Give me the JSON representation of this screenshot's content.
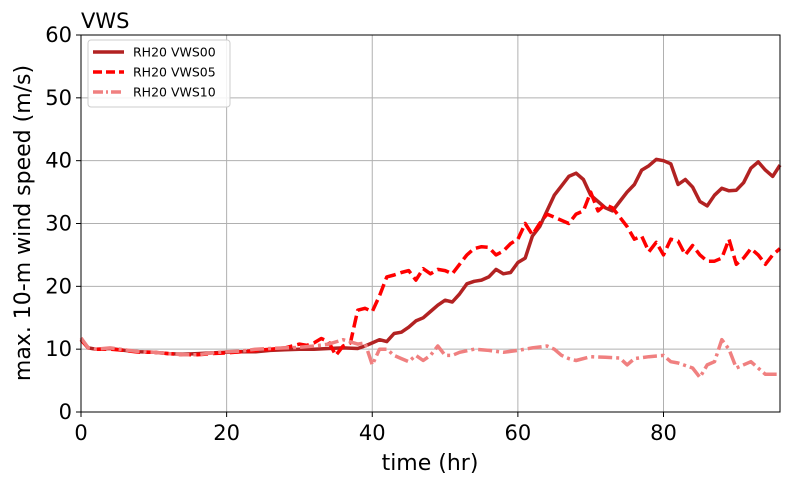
{
  "chart_data": {
    "type": "line",
    "title": "VWS",
    "xlabel": "time (hr)",
    "ylabel": "max. 10-m wind speed (m/s)",
    "xlim": [
      0,
      96
    ],
    "ylim": [
      0,
      60
    ],
    "xticks": [
      0,
      20,
      40,
      60,
      80
    ],
    "yticks": [
      0,
      10,
      20,
      30,
      40,
      50,
      60
    ],
    "grid": true,
    "legend_position": "top-left",
    "series": [
      {
        "name": "RH20 VWS00",
        "color": "#b22222",
        "style": "solid",
        "points": [
          [
            0,
            11.5
          ],
          [
            1,
            10.2
          ],
          [
            2,
            10
          ],
          [
            4,
            10.1
          ],
          [
            6,
            9.8
          ],
          [
            8,
            9.6
          ],
          [
            10,
            9.5
          ],
          [
            12,
            9.3
          ],
          [
            14,
            9.2
          ],
          [
            16,
            9.3
          ],
          [
            18,
            9.4
          ],
          [
            20,
            9.5
          ],
          [
            22,
            9.6
          ],
          [
            24,
            9.6
          ],
          [
            26,
            9.8
          ],
          [
            28,
            9.9
          ],
          [
            30,
            10
          ],
          [
            32,
            10
          ],
          [
            34,
            10.1
          ],
          [
            36,
            10.2
          ],
          [
            38,
            10.1
          ],
          [
            39,
            10.5
          ],
          [
            40,
            11
          ],
          [
            41,
            11.5
          ],
          [
            42,
            11.2
          ],
          [
            43,
            12.5
          ],
          [
            44,
            12.7
          ],
          [
            45,
            13.5
          ],
          [
            46,
            14.5
          ],
          [
            47,
            15
          ],
          [
            48,
            16
          ],
          [
            49,
            17
          ],
          [
            50,
            17.8
          ],
          [
            51,
            17.5
          ],
          [
            52,
            18.8
          ],
          [
            53,
            20.4
          ],
          [
            54,
            20.8
          ],
          [
            55,
            21
          ],
          [
            56,
            21.5
          ],
          [
            57,
            22.7
          ],
          [
            58,
            22
          ],
          [
            59,
            22.2
          ],
          [
            60,
            23.8
          ],
          [
            61,
            24.5
          ],
          [
            62,
            28
          ],
          [
            63,
            29.5
          ],
          [
            64,
            32
          ],
          [
            65,
            34.5
          ],
          [
            66,
            36
          ],
          [
            67,
            37.5
          ],
          [
            68,
            38
          ],
          [
            69,
            37
          ],
          [
            70,
            34.5
          ],
          [
            71,
            33.5
          ],
          [
            72,
            32.5
          ],
          [
            73,
            32
          ],
          [
            74,
            33.5
          ],
          [
            75,
            35
          ],
          [
            76,
            36.2
          ],
          [
            77,
            38.5
          ],
          [
            78,
            39.2
          ],
          [
            79,
            40.2
          ],
          [
            80,
            40
          ],
          [
            81,
            39.5
          ],
          [
            82,
            36.2
          ],
          [
            83,
            37
          ],
          [
            84,
            35.8
          ],
          [
            85,
            33.5
          ],
          [
            86,
            32.8
          ],
          [
            87,
            34.5
          ],
          [
            88,
            35.6
          ],
          [
            89,
            35.2
          ],
          [
            90,
            35.3
          ],
          [
            91,
            36.5
          ],
          [
            92,
            38.8
          ],
          [
            93,
            39.8
          ],
          [
            94,
            38.5
          ],
          [
            95,
            37.5
          ],
          [
            96,
            39.3
          ]
        ]
      },
      {
        "name": "RH20 VWS05",
        "color": "#ff0000",
        "style": "dashed",
        "points": [
          [
            0,
            11.5
          ],
          [
            1,
            10.2
          ],
          [
            2,
            10
          ],
          [
            4,
            10
          ],
          [
            6,
            9.8
          ],
          [
            8,
            9.5
          ],
          [
            10,
            9.5
          ],
          [
            12,
            9.3
          ],
          [
            14,
            9.1
          ],
          [
            16,
            9.1
          ],
          [
            18,
            9.3
          ],
          [
            20,
            9.4
          ],
          [
            22,
            9.6
          ],
          [
            24,
            9.8
          ],
          [
            26,
            10
          ],
          [
            28,
            10.2
          ],
          [
            30,
            10.8
          ],
          [
            31,
            10.6
          ],
          [
            32,
            11
          ],
          [
            33,
            11.7
          ],
          [
            34,
            11.2
          ],
          [
            35,
            9
          ],
          [
            36,
            10.5
          ],
          [
            37,
            11
          ],
          [
            38,
            16.2
          ],
          [
            39,
            16.5
          ],
          [
            40,
            16
          ],
          [
            41,
            18.5
          ],
          [
            42,
            21.5
          ],
          [
            43,
            21.8
          ],
          [
            44,
            22.2
          ],
          [
            45,
            22.5
          ],
          [
            46,
            21
          ],
          [
            47,
            22.8
          ],
          [
            48,
            22
          ],
          [
            49,
            22.7
          ],
          [
            50,
            22.5
          ],
          [
            51,
            22
          ],
          [
            52,
            23.5
          ],
          [
            53,
            25
          ],
          [
            54,
            26
          ],
          [
            55,
            26.3
          ],
          [
            56,
            26.2
          ],
          [
            57,
            25
          ],
          [
            58,
            25.6
          ],
          [
            59,
            26.8
          ],
          [
            60,
            27.5
          ],
          [
            61,
            30
          ],
          [
            62,
            28.2
          ],
          [
            63,
            30
          ],
          [
            64,
            31.5
          ],
          [
            65,
            31
          ],
          [
            66,
            30.5
          ],
          [
            67,
            30
          ],
          [
            68,
            31.5
          ],
          [
            69,
            32
          ],
          [
            70,
            35
          ],
          [
            71,
            32
          ],
          [
            72,
            33
          ],
          [
            73,
            32.5
          ],
          [
            74,
            31
          ],
          [
            75,
            29.5
          ],
          [
            76,
            27.5
          ],
          [
            77,
            28
          ],
          [
            78,
            25.5
          ],
          [
            79,
            27
          ],
          [
            80,
            25
          ],
          [
            81,
            27.5
          ],
          [
            82,
            27.2
          ],
          [
            83,
            25
          ],
          [
            84,
            26.5
          ],
          [
            85,
            25
          ],
          [
            86,
            24
          ],
          [
            87,
            24
          ],
          [
            88,
            24.5
          ],
          [
            89,
            27.5
          ],
          [
            90,
            23.5
          ],
          [
            91,
            24.5
          ],
          [
            92,
            26
          ],
          [
            93,
            25
          ],
          [
            94,
            23.5
          ],
          [
            95,
            25
          ],
          [
            96,
            26
          ]
        ]
      },
      {
        "name": "RH20 VWS10",
        "color": "#f08080",
        "style": "dashdot",
        "points": [
          [
            0,
            11.8
          ],
          [
            1,
            10.2
          ],
          [
            2,
            10
          ],
          [
            4,
            10.2
          ],
          [
            6,
            9.9
          ],
          [
            8,
            9.6
          ],
          [
            10,
            9.5
          ],
          [
            12,
            9.3
          ],
          [
            14,
            9.1
          ],
          [
            16,
            9.1
          ],
          [
            18,
            9.4
          ],
          [
            20,
            9.6
          ],
          [
            22,
            9.7
          ],
          [
            24,
            10
          ],
          [
            26,
            10.1
          ],
          [
            28,
            10.2
          ],
          [
            30,
            10.3
          ],
          [
            32,
            10.5
          ],
          [
            34,
            10.8
          ],
          [
            36,
            11.5
          ],
          [
            38,
            10.8
          ],
          [
            39,
            11
          ],
          [
            40,
            7.5
          ],
          [
            41,
            10
          ],
          [
            42,
            10
          ],
          [
            43,
            9
          ],
          [
            44,
            8.5
          ],
          [
            45,
            8
          ],
          [
            46,
            9
          ],
          [
            47,
            8.2
          ],
          [
            48,
            9
          ],
          [
            49,
            10.5
          ],
          [
            50,
            9
          ],
          [
            51,
            9
          ],
          [
            52,
            9.5
          ],
          [
            54,
            10
          ],
          [
            56,
            9.8
          ],
          [
            58,
            9.5
          ],
          [
            60,
            9.8
          ],
          [
            62,
            10.2
          ],
          [
            64,
            10.5
          ],
          [
            65,
            10
          ],
          [
            66,
            9
          ],
          [
            67,
            8.5
          ],
          [
            68,
            8.2
          ],
          [
            70,
            8.8
          ],
          [
            72,
            8.7
          ],
          [
            74,
            8.6
          ],
          [
            75,
            7.5
          ],
          [
            76,
            8.5
          ],
          [
            78,
            8.8
          ],
          [
            80,
            9
          ],
          [
            81,
            8
          ],
          [
            82,
            7.8
          ],
          [
            84,
            7
          ],
          [
            85,
            5.5
          ],
          [
            86,
            7.5
          ],
          [
            87,
            8
          ],
          [
            88,
            11.5
          ],
          [
            89,
            10
          ],
          [
            90,
            7
          ],
          [
            92,
            8
          ],
          [
            94,
            6
          ],
          [
            96,
            6
          ]
        ]
      }
    ]
  }
}
